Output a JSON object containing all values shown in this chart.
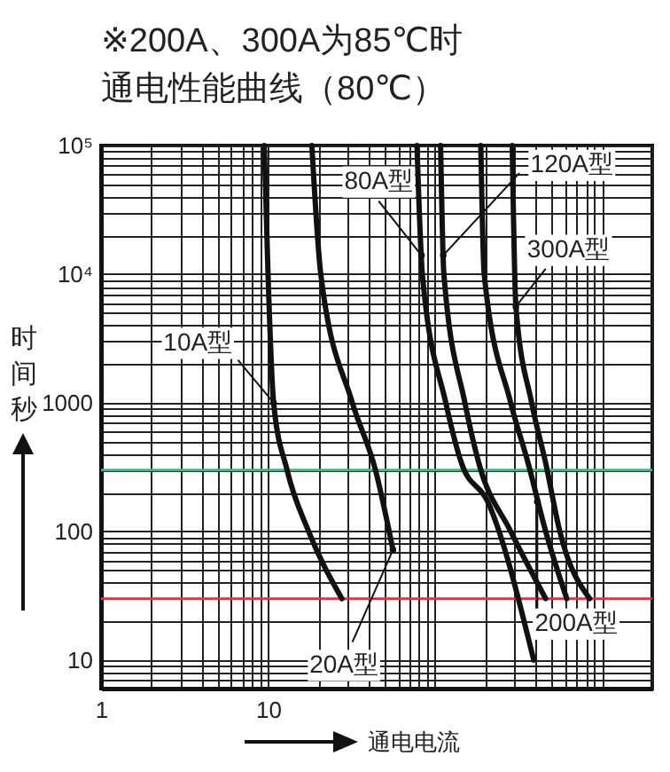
{
  "chart_data": {
    "type": "line",
    "title": "※200A、300A为85℃时",
    "subtitle": "通电性能曲线（80℃）",
    "xlabel": "通电电流",
    "ylabel": "时间秒",
    "log": "xy",
    "grid": true,
    "marker": "none",
    "line_style": "solid",
    "xlim": [
      1,
      2000
    ],
    "ylim": [
      6,
      100000
    ],
    "xticks": [
      1,
      {
        "value": 2,
        "label": null
      },
      {
        "value": 3,
        "label": null
      },
      {
        "value": 4,
        "label": null
      },
      {
        "value": 5,
        "label": null
      },
      {
        "value": 6,
        "label": null
      },
      {
        "value": 7,
        "label": null
      },
      {
        "value": 8,
        "label": null
      },
      {
        "value": 9,
        "label": null
      },
      10,
      {
        "value": 20,
        "label": null
      },
      {
        "value": 30,
        "label": null
      },
      {
        "value": 40,
        "label": null
      },
      {
        "value": 50,
        "label": null
      },
      {
        "value": 60,
        "label": null
      },
      {
        "value": 70,
        "label": null
      },
      {
        "value": 80,
        "label": null
      },
      {
        "value": 90,
        "label": null
      },
      {
        "value": 100,
        "label": null
      },
      {
        "value": 200,
        "label": null
      },
      {
        "value": 300,
        "label": null
      },
      {
        "value": 400,
        "label": null
      },
      {
        "value": 500,
        "label": null
      },
      {
        "value": 600,
        "label": null
      },
      {
        "value": 700,
        "label": null
      },
      {
        "value": 800,
        "label": null
      },
      {
        "value": 900,
        "label": null
      },
      {
        "value": 1000,
        "label": null
      },
      {
        "value": 2000,
        "label": null
      }
    ],
    "yticks": [
      {
        "value": 7,
        "label": null
      },
      {
        "value": 8,
        "label": null
      },
      {
        "value": 9,
        "label": null
      },
      10,
      {
        "value": 20,
        "label": null
      },
      {
        "value": 30,
        "label": null
      },
      {
        "value": 40,
        "label": null
      },
      {
        "value": 50,
        "label": null
      },
      {
        "value": 60,
        "label": null
      },
      {
        "value": 70,
        "label": null
      },
      {
        "value": 80,
        "label": null
      },
      {
        "value": 90,
        "label": null
      },
      100,
      {
        "value": 200,
        "label": null
      },
      {
        "value": 300,
        "label": null
      },
      {
        "value": 400,
        "label": null
      },
      {
        "value": 500,
        "label": null
      },
      {
        "value": 600,
        "label": null
      },
      {
        "value": 700,
        "label": null
      },
      {
        "value": 800,
        "label": null
      },
      {
        "value": 900,
        "label": null
      },
      1000,
      {
        "value": 2000,
        "label": null
      },
      {
        "value": 3000,
        "label": null
      },
      {
        "value": 4000,
        "label": null
      },
      {
        "value": 5000,
        "label": null
      },
      {
        "value": 6000,
        "label": null
      },
      {
        "value": 7000,
        "label": null
      },
      {
        "value": 8000,
        "label": null
      },
      {
        "value": 9000,
        "label": null
      },
      {
        "value": 10000,
        "label": "10⁴"
      },
      {
        "value": 20000,
        "label": null
      },
      {
        "value": 30000,
        "label": null
      },
      {
        "value": 40000,
        "label": null
      },
      {
        "value": 50000,
        "label": null
      },
      {
        "value": 60000,
        "label": null
      },
      {
        "value": 70000,
        "label": null
      },
      {
        "value": 80000,
        "label": null
      },
      {
        "value": 90000,
        "label": null
      },
      {
        "value": 100000,
        "label": "10⁵"
      }
    ],
    "series": [
      {
        "color": "#111111",
        "x": [
          9.5,
          10,
          10.8,
          13,
          17.5,
          27.7
        ],
        "values": [
          100000,
          10000,
          1000,
          300,
          100,
          30
        ]
      },
      {
        "color": "#111111",
        "x": [
          18.3,
          20.7,
          32,
          44,
          56
        ],
        "values": [
          100000,
          10000,
          1000,
          300,
          72
        ]
      },
      {
        "color": "#111111",
        "x": [
          78,
          84,
          116,
          144,
          207,
          390
        ],
        "values": [
          100000,
          10000,
          1000,
          340,
          170,
          10
        ]
      },
      {
        "color": "#111111",
        "x": [
          108,
          113,
          151,
          183,
          284,
          460
        ],
        "values": [
          100000,
          10000,
          1000,
          340,
          100,
          30
        ]
      },
      {
        "color": "#111111",
        "x": [
          188,
          197,
          284,
          361,
          460,
          615
        ],
        "values": [
          100000,
          10000,
          1000,
          340,
          100,
          30
        ]
      },
      {
        "color": "#111111",
        "x": [
          290,
          305,
          379,
          460,
          559,
          844
        ],
        "values": [
          100000,
          5600,
          1000,
          340,
          100,
          30
        ]
      }
    ],
    "ref_lines": [
      {
        "axis": "y",
        "value": 300,
        "color": "#3cb878"
      },
      {
        "axis": "y",
        "value": 30,
        "color": "#e0304a"
      }
    ],
    "annotations": [
      {
        "text": "10A型",
        "x": 10.8,
        "y": 1000
      },
      {
        "text": "20A型",
        "x": 56,
        "y": 72
      },
      {
        "text": "80A型",
        "x": 83,
        "y": 14000
      },
      {
        "text": "120A型",
        "x": 112,
        "y": 14000
      },
      {
        "text": "300A型",
        "x": 305,
        "y": 5600
      },
      {
        "text": "200A型",
        "x": 410,
        "y": 170
      }
    ]
  }
}
